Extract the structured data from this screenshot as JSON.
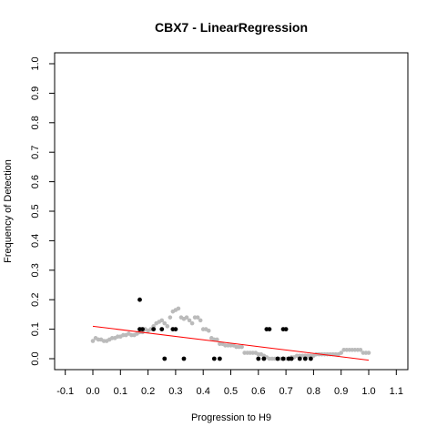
{
  "chart_data": {
    "type": "scatter",
    "title": "CBX7 - LinearRegression",
    "xlabel": "Progression to H9",
    "ylabel": "Frequency of Detection",
    "xlim": [
      -0.1,
      1.1
    ],
    "ylim": [
      0.0,
      1.0
    ],
    "x_ticks": [
      "-0.1",
      "0.0",
      "0.1",
      "0.2",
      "0.3",
      "0.4",
      "0.5",
      "0.6",
      "0.7",
      "0.8",
      "0.9",
      "1.0",
      "1.1"
    ],
    "y_ticks": [
      "0.0",
      "0.1",
      "0.2",
      "0.3",
      "0.4",
      "0.5",
      "0.6",
      "0.7",
      "0.8",
      "0.9",
      "1.0"
    ],
    "grid": false,
    "legend": "none",
    "colors": {
      "smoothed": "#bbbbbb",
      "observed": "#000000",
      "fit": "#ff0000"
    },
    "series": [
      {
        "kind": "smoothed",
        "x": [
          0.0,
          0.01,
          0.02,
          0.03,
          0.04,
          0.05,
          0.06,
          0.07,
          0.08,
          0.09,
          0.1,
          0.11,
          0.12,
          0.13,
          0.14,
          0.15,
          0.16,
          0.17,
          0.18,
          0.19,
          0.2,
          0.21,
          0.22,
          0.23,
          0.24,
          0.25,
          0.26,
          0.27,
          0.28,
          0.29,
          0.3,
          0.31,
          0.32,
          0.33,
          0.34,
          0.35,
          0.36,
          0.37,
          0.38,
          0.39,
          0.4,
          0.41,
          0.42,
          0.43,
          0.44,
          0.45,
          0.46,
          0.47,
          0.48,
          0.49,
          0.5,
          0.51,
          0.52,
          0.53,
          0.54,
          0.55,
          0.56,
          0.57,
          0.58,
          0.59,
          0.6,
          0.61,
          0.62,
          0.63,
          0.64,
          0.65,
          0.66,
          0.67,
          0.68,
          0.69,
          0.7,
          0.71,
          0.72,
          0.73,
          0.74,
          0.75,
          0.76,
          0.77,
          0.78,
          0.79,
          0.8,
          0.81,
          0.82,
          0.83,
          0.84,
          0.85,
          0.86,
          0.87,
          0.88,
          0.89,
          0.9,
          0.91,
          0.92,
          0.93,
          0.94,
          0.95,
          0.96,
          0.97,
          0.98,
          0.99,
          1.0
        ],
        "y": [
          0.06,
          0.07,
          0.065,
          0.065,
          0.06,
          0.06,
          0.065,
          0.07,
          0.07,
          0.075,
          0.075,
          0.08,
          0.08,
          0.085,
          0.08,
          0.08,
          0.085,
          0.09,
          0.09,
          0.1,
          0.095,
          0.1,
          0.11,
          0.12,
          0.125,
          0.13,
          0.12,
          0.11,
          0.14,
          0.16,
          0.165,
          0.17,
          0.14,
          0.135,
          0.14,
          0.13,
          0.12,
          0.14,
          0.14,
          0.13,
          0.1,
          0.1,
          0.095,
          0.07,
          0.065,
          0.065,
          0.05,
          0.05,
          0.045,
          0.045,
          0.045,
          0.045,
          0.04,
          0.04,
          0.04,
          0.02,
          0.02,
          0.02,
          0.02,
          0.02,
          0.015,
          0.015,
          0.01,
          0.005,
          0.0,
          0.0,
          0.0,
          0.0,
          0.0,
          0.0,
          0.0,
          0.0,
          0.005,
          0.005,
          0.01,
          0.01,
          0.01,
          0.01,
          0.01,
          0.01,
          0.01,
          0.015,
          0.015,
          0.015,
          0.015,
          0.015,
          0.015,
          0.015,
          0.015,
          0.015,
          0.02,
          0.03,
          0.03,
          0.03,
          0.03,
          0.03,
          0.03,
          0.03,
          0.02,
          0.02,
          0.02
        ]
      },
      {
        "kind": "observed",
        "x": [
          0.17,
          0.17,
          0.18,
          0.22,
          0.25,
          0.26,
          0.29,
          0.3,
          0.33,
          0.44,
          0.46,
          0.6,
          0.62,
          0.63,
          0.64,
          0.67,
          0.69,
          0.69,
          0.7,
          0.71,
          0.72,
          0.75,
          0.77,
          0.79
        ],
        "y": [
          0.2,
          0.1,
          0.1,
          0.1,
          0.1,
          0.0,
          0.1,
          0.1,
          0.0,
          0.0,
          0.0,
          0.0,
          0.0,
          0.1,
          0.1,
          0.0,
          0.0,
          0.1,
          0.1,
          0.0,
          0.0,
          0.0,
          0.0,
          0.0
        ]
      }
    ],
    "fit_line": {
      "x": [
        0.0,
        1.0
      ],
      "y": [
        0.11,
        -0.005
      ]
    }
  }
}
